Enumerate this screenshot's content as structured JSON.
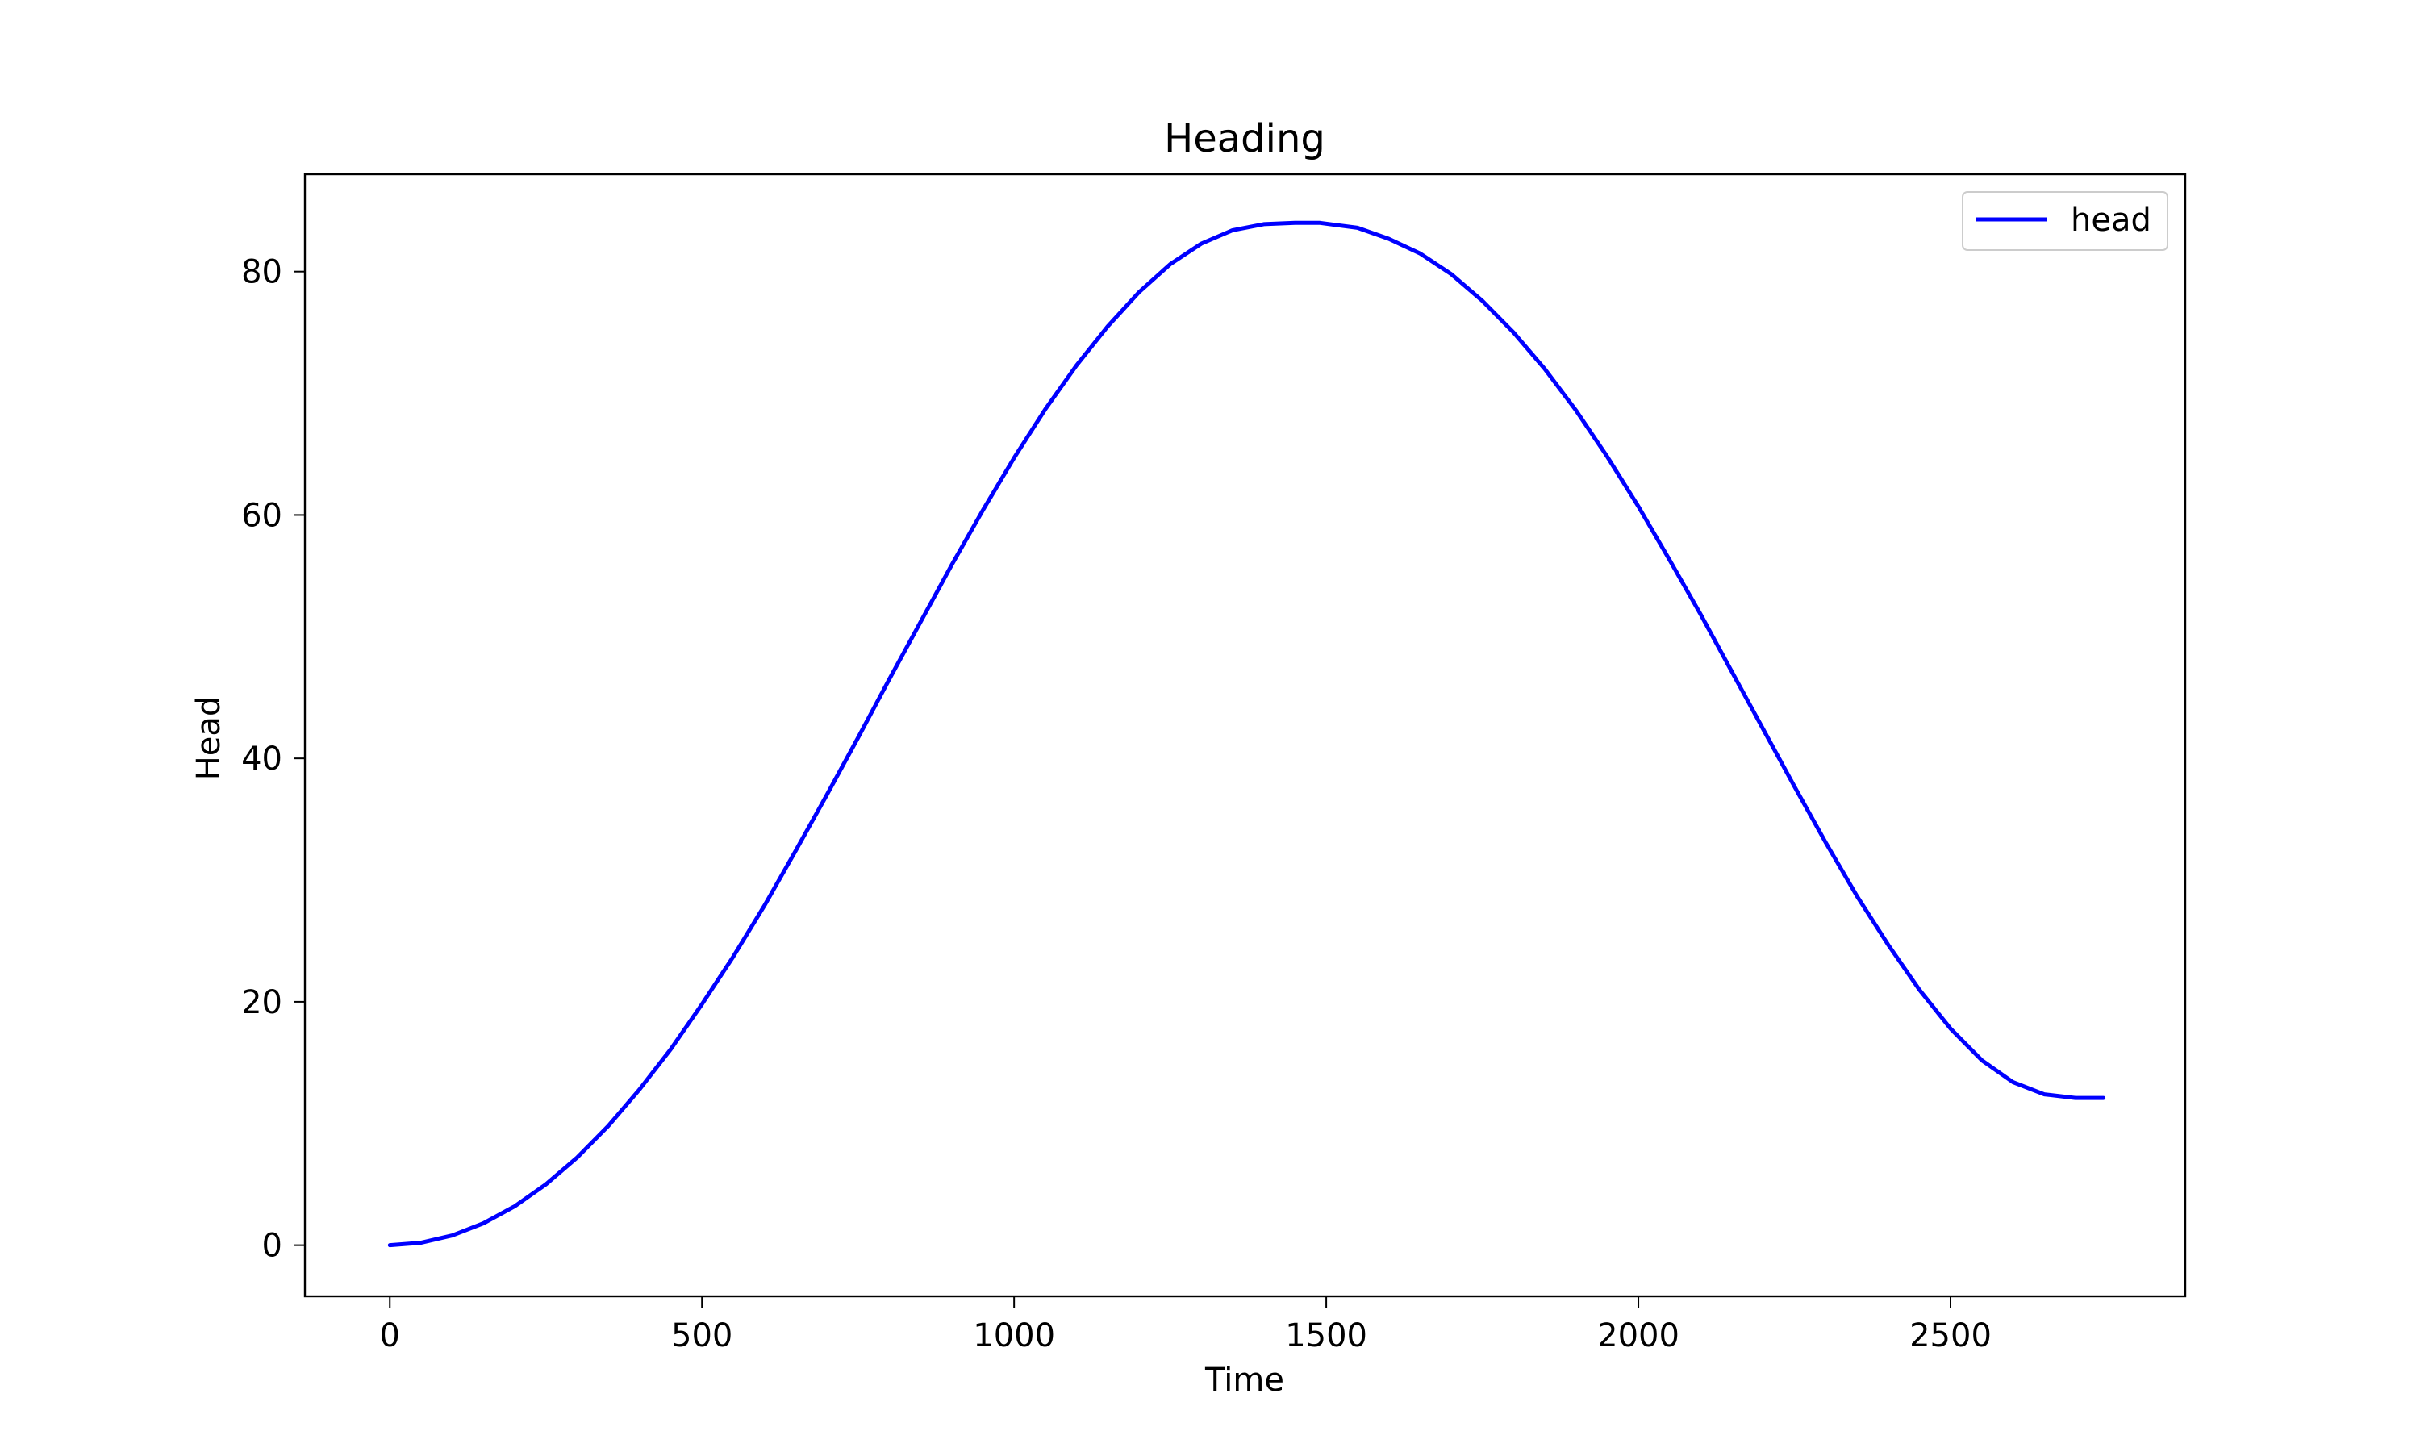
{
  "chart_data": {
    "type": "line",
    "title": "Heading",
    "xlabel": "Time",
    "ylabel": "Head",
    "xlim": [
      -136,
      2876
    ],
    "ylim": [
      -4.2,
      88.0
    ],
    "xticks": [
      0,
      500,
      1000,
      1500,
      2000,
      2500
    ],
    "yticks": [
      0,
      20,
      40,
      60,
      80
    ],
    "xtick_labels": [
      "0",
      "500",
      "1000",
      "1500",
      "2000",
      "2500"
    ],
    "ytick_labels": [
      "0",
      "20",
      "40",
      "60",
      "80"
    ],
    "grid": false,
    "legend_position": "top-right",
    "series": [
      {
        "name": "head",
        "color": "#0000ff",
        "x": [
          0,
          50,
          100,
          150,
          200,
          250,
          300,
          350,
          400,
          450,
          500,
          550,
          600,
          650,
          700,
          750,
          800,
          850,
          900,
          950,
          1000,
          1050,
          1100,
          1150,
          1200,
          1250,
          1300,
          1350,
          1400,
          1450,
          1490,
          1550,
          1600,
          1650,
          1700,
          1750,
          1800,
          1850,
          1900,
          1950,
          2000,
          2050,
          2100,
          2150,
          2200,
          2250,
          2300,
          2350,
          2400,
          2450,
          2500,
          2550,
          2600,
          2650,
          2700,
          2745
        ],
        "values": [
          0,
          0.2,
          0.8,
          1.8,
          3.2,
          5.0,
          7.2,
          9.8,
          12.8,
          16.1,
          19.8,
          23.7,
          27.9,
          32.4,
          37.0,
          41.7,
          46.5,
          51.2,
          55.9,
          60.4,
          64.7,
          68.7,
          72.3,
          75.5,
          78.3,
          80.6,
          82.3,
          83.4,
          83.9,
          84.0,
          84.0,
          83.6,
          82.7,
          81.5,
          79.8,
          77.6,
          75.0,
          72.0,
          68.6,
          64.8,
          60.7,
          56.3,
          51.8,
          47.1,
          42.4,
          37.7,
          33.1,
          28.7,
          24.7,
          21.0,
          17.8,
          15.2,
          13.4,
          12.4,
          12.1,
          12.1
        ]
      }
    ]
  }
}
